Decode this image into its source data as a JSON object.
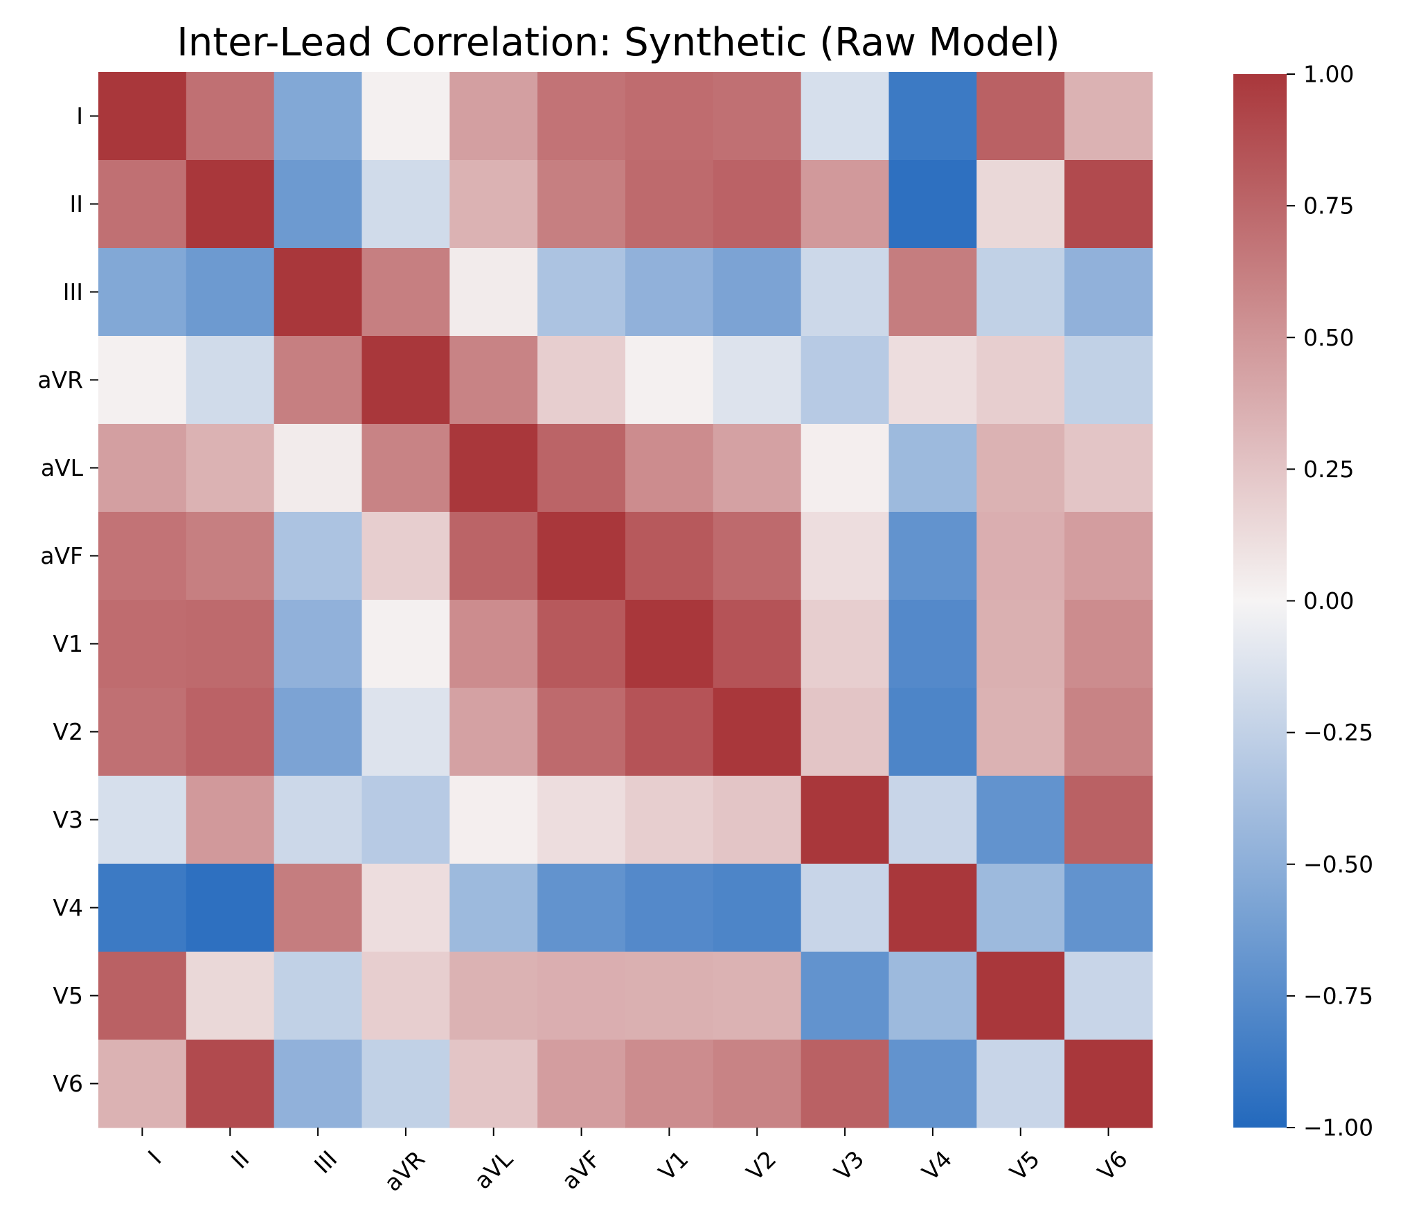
{
  "chart_data": {
    "type": "heatmap",
    "title": "Inter-Lead Correlation: Synthetic (Raw Model)",
    "xlabel": "",
    "ylabel": "",
    "row_labels": [
      "I",
      "II",
      "III",
      "aVR",
      "aVL",
      "aVF",
      "V1",
      "V2",
      "V3",
      "V4",
      "V5",
      "V6"
    ],
    "col_labels": [
      "I",
      "II",
      "III",
      "aVR",
      "aVL",
      "aVF",
      "V1",
      "V2",
      "V3",
      "V4",
      "V5",
      "V6"
    ],
    "values": [
      [
        1.0,
        0.7,
        -0.55,
        0.02,
        0.45,
        0.68,
        0.72,
        0.7,
        -0.15,
        -0.88,
        0.78,
        0.35
      ],
      [
        0.7,
        1.0,
        -0.65,
        -0.18,
        0.35,
        0.62,
        0.73,
        0.77,
        0.48,
        -0.95,
        0.15,
        0.9
      ],
      [
        -0.55,
        -0.65,
        1.0,
        0.62,
        0.05,
        -0.35,
        -0.48,
        -0.58,
        -0.2,
        0.63,
        -0.25,
        -0.48
      ],
      [
        0.02,
        -0.18,
        0.62,
        1.0,
        0.6,
        0.2,
        0.02,
        -0.12,
        -0.3,
        0.12,
        0.2,
        -0.25
      ],
      [
        0.45,
        0.35,
        0.05,
        0.6,
        1.0,
        0.76,
        0.55,
        0.44,
        0.03,
        -0.42,
        0.35,
        0.25
      ],
      [
        0.68,
        0.62,
        -0.35,
        0.2,
        0.76,
        1.0,
        0.82,
        0.73,
        0.12,
        -0.7,
        0.37,
        0.46
      ],
      [
        0.72,
        0.73,
        -0.48,
        0.02,
        0.55,
        0.82,
        1.0,
        0.85,
        0.2,
        -0.77,
        0.36,
        0.55
      ],
      [
        0.7,
        0.77,
        -0.58,
        -0.12,
        0.44,
        0.73,
        0.85,
        1.0,
        0.25,
        -0.8,
        0.35,
        0.6
      ],
      [
        -0.15,
        0.48,
        -0.2,
        -0.3,
        0.03,
        0.12,
        0.2,
        0.25,
        1.0,
        -0.22,
        -0.7,
        0.78
      ],
      [
        -0.88,
        -0.95,
        0.63,
        0.12,
        -0.42,
        -0.7,
        -0.77,
        -0.8,
        -0.22,
        1.0,
        -0.42,
        -0.7
      ],
      [
        0.78,
        0.15,
        -0.25,
        0.2,
        0.35,
        0.37,
        0.36,
        0.35,
        -0.7,
        -0.42,
        1.0,
        -0.22
      ],
      [
        0.35,
        0.9,
        -0.48,
        -0.25,
        0.25,
        0.46,
        0.55,
        0.6,
        0.78,
        -0.7,
        -0.22,
        1.0
      ]
    ],
    "colormap": "vlag",
    "vmin": -1.0,
    "vmax": 1.0,
    "colorbar_ticks": [
      1.0,
      0.75,
      0.5,
      0.25,
      0.0,
      -0.25,
      -0.5,
      -0.75,
      -1.0
    ],
    "colorbar_tick_labels": [
      "1.00",
      "0.75",
      "0.50",
      "0.25",
      "0.00",
      "−0.25",
      "−0.50",
      "−0.75",
      "−1.00"
    ],
    "colors": {
      "negative": "#2369bd",
      "neutral": "#f6f4f4",
      "positive": "#a9373b"
    }
  }
}
